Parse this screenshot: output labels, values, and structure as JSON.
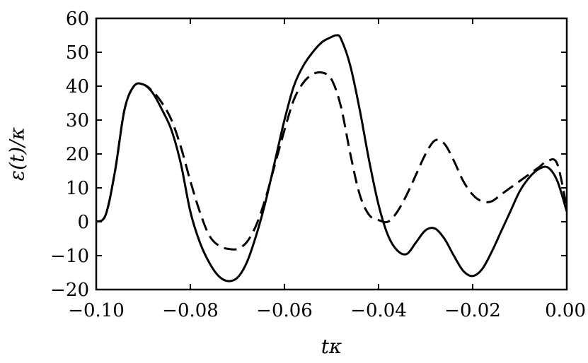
{
  "chart_data": {
    "type": "line",
    "title": "",
    "xlabel": "tκ",
    "ylabel": "ε(t)/κ",
    "xlim": [
      -0.1,
      0.0
    ],
    "ylim": [
      -20,
      60
    ],
    "grid": false,
    "x_ticks": [
      -0.1,
      -0.08,
      -0.06,
      -0.04,
      -0.02,
      0.0
    ],
    "x_tick_labels": [
      "−0.10",
      "−0.08",
      "−0.06",
      "−0.04",
      "−0.02",
      "0.00"
    ],
    "y_ticks": [
      -20,
      -10,
      0,
      10,
      20,
      30,
      40,
      50,
      60
    ],
    "y_tick_labels": [
      "−20",
      "−10",
      "0",
      "10",
      "20",
      "30",
      "40",
      "50",
      "60"
    ],
    "series": [
      {
        "style": "solid",
        "color": "#000000",
        "x": [
          -0.1,
          -0.098,
          -0.096,
          -0.094,
          -0.092,
          -0.09,
          -0.088,
          -0.086,
          -0.084,
          -0.082,
          -0.08,
          -0.078,
          -0.076,
          -0.074,
          -0.072,
          -0.07,
          -0.068,
          -0.066,
          -0.064,
          -0.062,
          -0.06,
          -0.058,
          -0.056,
          -0.054,
          -0.052,
          -0.05,
          -0.049,
          -0.048,
          -0.046,
          -0.044,
          -0.042,
          -0.04,
          -0.038,
          -0.036,
          -0.034,
          -0.032,
          -0.03,
          -0.028,
          -0.026,
          -0.024,
          -0.022,
          -0.02,
          -0.018,
          -0.016,
          -0.014,
          -0.012,
          -0.01,
          -0.008,
          -0.006,
          -0.004,
          -0.002,
          0.0
        ],
        "y": [
          0,
          2,
          15,
          33,
          40,
          40.5,
          38,
          33,
          27,
          17,
          3,
          -6,
          -12,
          -16,
          -17.5,
          -16.5,
          -12,
          -4,
          6,
          18,
          30,
          40,
          46,
          50,
          53,
          54.5,
          55,
          54,
          46,
          33,
          18,
          5,
          -4,
          -8.5,
          -9.5,
          -6,
          -2.5,
          -2,
          -5,
          -10,
          -14.5,
          -16,
          -14,
          -9,
          -3,
          3,
          9,
          13,
          15.5,
          16,
          12,
          3
        ]
      },
      {
        "style": "dashed",
        "color": "#000000",
        "x": [
          -0.1,
          -0.098,
          -0.096,
          -0.094,
          -0.092,
          -0.09,
          -0.088,
          -0.086,
          -0.084,
          -0.082,
          -0.08,
          -0.078,
          -0.076,
          -0.074,
          -0.072,
          -0.07,
          -0.068,
          -0.066,
          -0.064,
          -0.062,
          -0.06,
          -0.058,
          -0.056,
          -0.054,
          -0.052,
          -0.05,
          -0.048,
          -0.046,
          -0.044,
          -0.042,
          -0.04,
          -0.038,
          -0.036,
          -0.034,
          -0.032,
          -0.03,
          -0.028,
          -0.026,
          -0.024,
          -0.022,
          -0.02,
          -0.018,
          -0.016,
          -0.014,
          -0.012,
          -0.01,
          -0.008,
          -0.006,
          -0.004,
          -0.002,
          0.0
        ],
        "y": [
          0,
          2,
          15,
          33,
          40,
          40.5,
          38.5,
          35,
          30,
          22,
          12,
          3,
          -4,
          -7,
          -8,
          -8,
          -6,
          -1,
          7,
          17,
          27,
          36,
          41,
          43.5,
          44,
          42,
          34,
          20,
          8,
          2,
          0.5,
          0,
          3,
          8,
          14,
          20,
          24,
          23,
          18,
          12,
          8,
          6,
          6,
          8,
          10,
          12,
          14,
          16,
          18,
          17,
          4
        ]
      }
    ]
  }
}
